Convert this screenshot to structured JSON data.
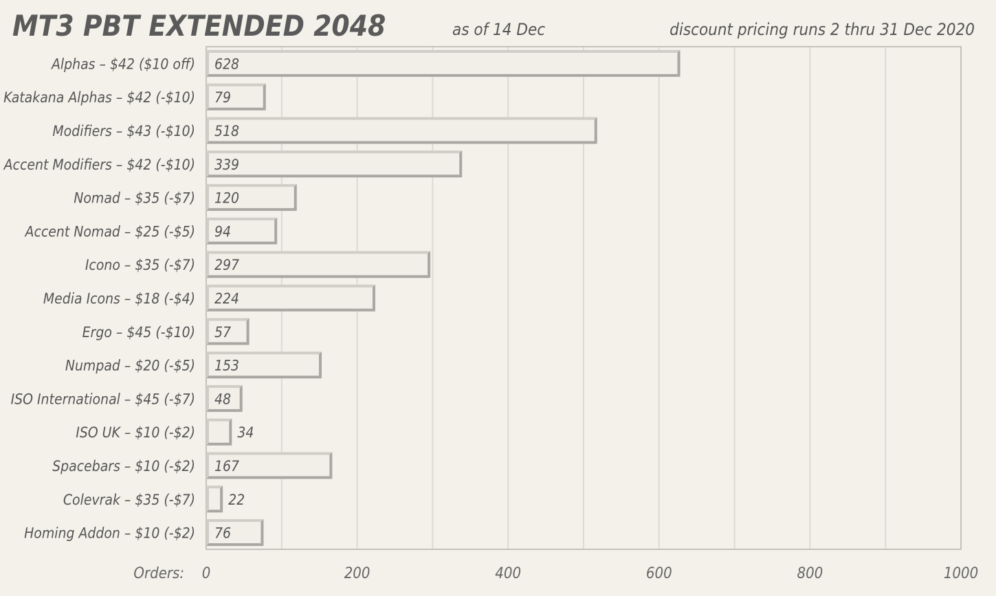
{
  "chart_data": {
    "type": "bar",
    "orientation": "horizontal",
    "title": "MT3 PBT EXTENDED 2048",
    "subtitle_center": "as of  14 Dec",
    "subtitle_right": "discount pricing runs 2 thru 31 Dec 2020",
    "xlabel": "Orders:",
    "xlim": [
      0,
      1000
    ],
    "xticks": [
      0,
      200,
      400,
      600,
      800,
      1000
    ],
    "grid": true,
    "categories": [
      "Alphas – $42  ($10 off)",
      "Katakana Alphas – $42  (-$10)",
      "Modifiers – $43  (-$10)",
      "Accent Modifiers – $42  (-$10)",
      "Nomad – $35  (-$7)",
      "Accent Nomad – $25  (-$5)",
      "Icono – $35  (-$7)",
      "Media Icons – $18  (-$4)",
      "Ergo – $45  (-$10)",
      "Numpad – $20  (-$5)",
      "ISO International – $45  (-$7)",
      "ISO UK – $10  (-$2)",
      "Spacebars – $10  (-$2)",
      "Colevrak – $35  (-$7)",
      "Homing Addon – $10  (-$2)"
    ],
    "values": [
      628,
      79,
      518,
      339,
      120,
      94,
      297,
      224,
      57,
      153,
      48,
      34,
      167,
      22,
      76
    ],
    "colors": {
      "background": "#f3f1ea",
      "bar_face": "#f1efe8",
      "bar_light": "#cfcdc6",
      "bar_dark": "#a9a7a1",
      "grid": "#dcdad3",
      "axis": "#c4c2bb"
    }
  }
}
